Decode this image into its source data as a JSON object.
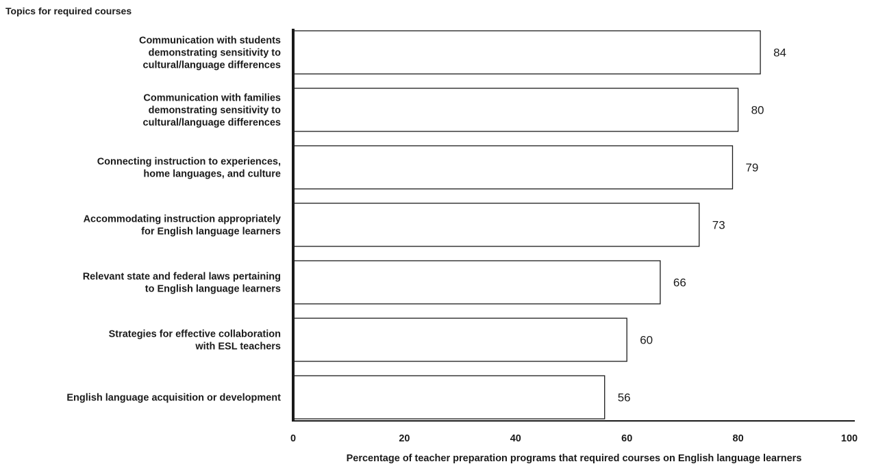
{
  "chart_data": {
    "type": "bar",
    "orientation": "horizontal",
    "ylabel": "Topics for required courses",
    "xlabel": "Percentage of teacher preparation programs that required courses on English language learners",
    "xlim": [
      0,
      100
    ],
    "x_ticks": [
      0,
      20,
      40,
      60,
      80,
      100
    ],
    "grid": false,
    "legend": "none",
    "categories": [
      [
        "Communication with students",
        "demonstrating sensitivity to",
        "cultural/language differences"
      ],
      [
        "Communication with families",
        "demonstrating sensitivity to",
        "cultural/language differences"
      ],
      [
        "Connecting instruction to experiences,",
        "home languages, and culture"
      ],
      [
        "Accommodating instruction appropriately",
        "for English language learners"
      ],
      [
        "Relevant state and federal laws pertaining",
        "to English language learners"
      ],
      [
        "Strategies for effective collaboration",
        "with ESL teachers"
      ],
      [
        "English language acquisition or development"
      ]
    ],
    "values": [
      84,
      80,
      79,
      73,
      66,
      60,
      56
    ],
    "colors": {
      "bar_fill": "#ffffff",
      "bar_stroke": "#1a1a1a",
      "axis": "#1a1a1a",
      "text": "#1a1a1a"
    }
  }
}
